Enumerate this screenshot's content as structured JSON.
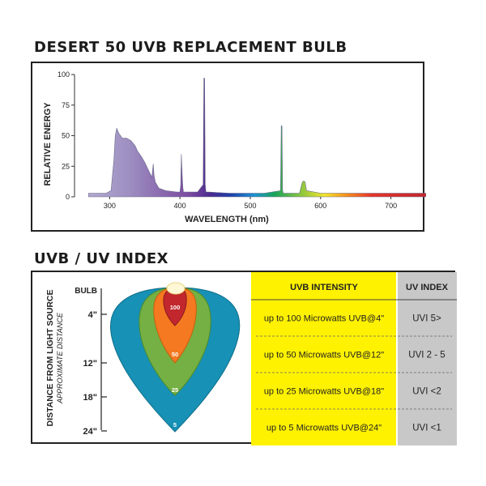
{
  "chart_data": [
    {
      "type": "line",
      "title": "DESERT 50 UVB REPLACEMENT BULB",
      "xlabel": "WAVELENGTH (nm)",
      "ylabel": "RELATIVE ENERGY",
      "xlim": [
        250,
        750
      ],
      "ylim": [
        0,
        100
      ],
      "xticks": [
        "300",
        "400",
        "500",
        "600",
        "700"
      ],
      "yticks": [
        "0",
        "25",
        "50",
        "75",
        "100"
      ],
      "grid": false,
      "legend": "none",
      "series": [
        {
          "x": [
            270,
            295,
            302,
            306,
            308,
            310,
            313,
            318,
            324,
            330,
            336,
            340,
            345,
            350,
            355,
            360,
            362,
            363,
            365,
            370,
            380,
            395,
            400,
            401,
            402,
            403,
            404,
            405,
            410,
            425,
            433,
            434,
            435,
            436,
            437,
            440,
            470,
            520,
            543,
            544,
            545,
            546,
            547,
            550,
            570,
            574,
            576,
            578,
            580,
            600,
            650,
            700,
            750
          ],
          "values": [
            3,
            3,
            5,
            30,
            50,
            56,
            52,
            48,
            48,
            46,
            42,
            37,
            33,
            28,
            22,
            16,
            27,
            18,
            12,
            7,
            5,
            4,
            4,
            10,
            35,
            20,
            8,
            4,
            4,
            4,
            10,
            97,
            97,
            10,
            4,
            4,
            3,
            3,
            5,
            58,
            58,
            5,
            3,
            3,
            3,
            12,
            13,
            12,
            5,
            3,
            3,
            3,
            3
          ]
        }
      ]
    },
    {
      "type": "table",
      "title": "UVB / UV INDEX",
      "ylabel": "DISTANCE FROM LIGHT SOURCE",
      "ylabel_note": "APPROXIMATE DISTANCE",
      "distances": [
        "BULB",
        "4\"",
        "12\"",
        "18\"",
        "24\""
      ],
      "zones": [
        {
          "label": "100",
          "color": "#c1272d"
        },
        {
          "label": "50",
          "color": "#f47920"
        },
        {
          "label": "25",
          "color": "#74b043"
        },
        {
          "label": "5",
          "color": "#1791b5"
        }
      ],
      "columns": [
        "UVB INTENSITY",
        "UV INDEX"
      ],
      "rows": [
        [
          "up to 100 Microwatts UVB@4\"",
          "UVI 5>"
        ],
        [
          "up to 50 Microwatts UVB@12\"",
          "UVI 2 - 5"
        ],
        [
          "up to 25 Microwatts UVB@18\"",
          "UVI <2"
        ],
        [
          "up to 5 Microwatts UVB@24\"",
          "UVI <1"
        ]
      ]
    }
  ],
  "colors": {
    "spectrum_violet": "#9d8fc1",
    "table_yellow": "#fff200",
    "table_gray": "#c8c8c8",
    "border": "#222222"
  }
}
